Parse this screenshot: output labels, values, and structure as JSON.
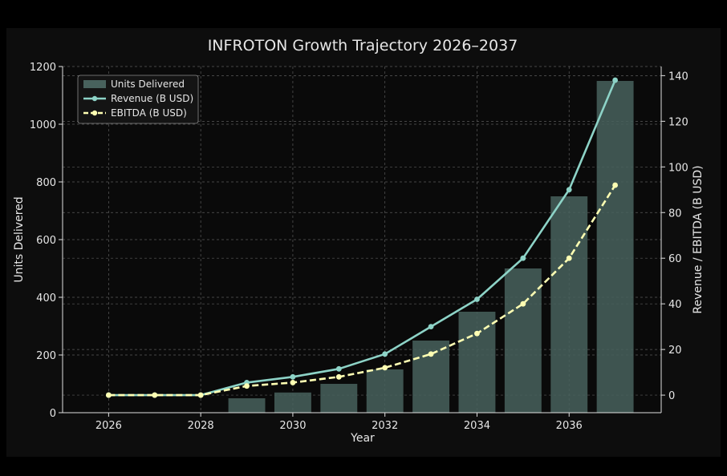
{
  "chart_data": {
    "type": "bar+line",
    "title": "INFROTON Growth Trajectory 2026–2037",
    "xlabel": "Year",
    "ylabel_left": "Units Delivered",
    "ylabel_right": "Revenue / EBITDA (B USD)",
    "x": [
      2026,
      2027,
      2028,
      2029,
      2030,
      2031,
      2032,
      2033,
      2034,
      2035,
      2036,
      2037
    ],
    "x_ticks": [
      "2026",
      "2028",
      "2030",
      "2032",
      "2034",
      "2036"
    ],
    "xlim": [
      2025,
      2038
    ],
    "ylim_left": [
      0,
      1200
    ],
    "ylim_right": [
      -7.7,
      144
    ],
    "y_ticks_left": [
      "0",
      "200",
      "400",
      "600",
      "800",
      "1000",
      "1200"
    ],
    "y_ticks_right": [
      "0",
      "20",
      "40",
      "60",
      "80",
      "100",
      "120",
      "140"
    ],
    "grid": true,
    "legend_position": "top-left",
    "series": [
      {
        "name": "Units Delivered",
        "kind": "bar",
        "axis": "left",
        "color": "#48625d",
        "values": [
          0,
          0,
          0,
          50,
          70,
          100,
          150,
          250,
          350,
          500,
          750,
          1150
        ]
      },
      {
        "name": "Revenue (B USD)",
        "kind": "line",
        "axis": "right",
        "color": "#8dd3c7",
        "dashed": false,
        "values": [
          0,
          0,
          0,
          5.5,
          8,
          11.5,
          18,
          30,
          42,
          60,
          90,
          138
        ]
      },
      {
        "name": "EBITDA (B USD)",
        "kind": "line",
        "axis": "right",
        "color": "#ffffb3",
        "dashed": true,
        "values": [
          0,
          0,
          0,
          4,
          5.5,
          8,
          12,
          18,
          27,
          40,
          60,
          92
        ]
      }
    ]
  }
}
